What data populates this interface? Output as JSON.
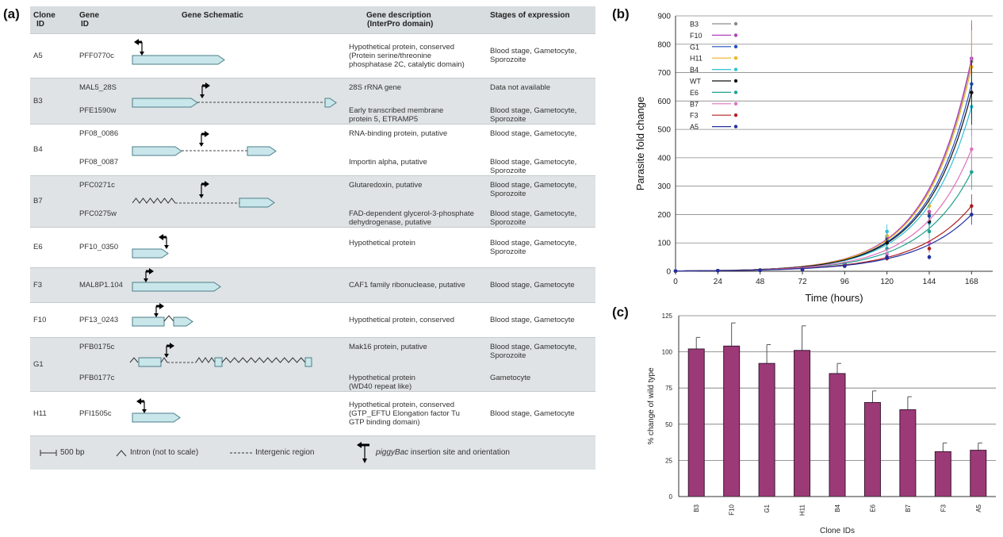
{
  "panels": {
    "a": "(a)",
    "b": "(b)",
    "c": "(c)"
  },
  "table": {
    "headers": {
      "clone": [
        "Clone",
        "ID"
      ],
      "gene": [
        "Gene",
        "ID"
      ],
      "schematic": "Gene Schematic",
      "description": [
        "Gene description",
        "(InterPro domain)"
      ],
      "stages": "Stages of expression"
    },
    "rows": [
      {
        "clone": "A5",
        "genes": [
          {
            "id": "PFF0770c",
            "desc": [
              "Hypothetical protein, conserved",
              "(Protein serine/threonine",
              "phosphatase 2C, catalytic domain)"
            ],
            "stage": [
              "Blood stage, Gametocyte,",
              "Sporozoite"
            ]
          }
        ]
      },
      {
        "clone": "B3",
        "genes": [
          {
            "id": "MAL5_28S",
            "desc": [
              "28S rRNA gene"
            ],
            "stage": [
              "Data not available"
            ]
          },
          {
            "id": "PFE1590w",
            "desc": [
              "Early transcribed membrane",
              "protein 5, ETRAMP5"
            ],
            "stage": [
              "Blood stage, Gametocyte,",
              "Sporozoite"
            ]
          }
        ]
      },
      {
        "clone": "B4",
        "genes": [
          {
            "id": "PF08_0086",
            "desc": [
              "RNA-binding protein, putative"
            ],
            "stage": [
              "Blood stage, Gametocyte,"
            ]
          },
          {
            "id": "PF08_0087",
            "desc": [
              "Importin alpha, putative"
            ],
            "stage": [
              "Blood stage, Gametocyte,",
              "Sporozoite"
            ]
          }
        ]
      },
      {
        "clone": "B7",
        "genes": [
          {
            "id": "PFC0271c",
            "desc": [
              "Glutaredoxin, putative"
            ],
            "stage": [
              "Blood stage, Gametocyte,",
              "Sporozoite"
            ]
          },
          {
            "id": "PFC0275w",
            "desc": [
              "FAD-dependent glycerol-3-phosphate",
              "dehydrogenase, putative"
            ],
            "stage": [
              "Blood stage, Gametocyte,",
              "Sporozoite"
            ]
          }
        ]
      },
      {
        "clone": "E6",
        "genes": [
          {
            "id": "PF10_0350",
            "desc": [
              "Hypothetical protein"
            ],
            "stage": [
              "Blood stage, Gametocyte,",
              "Sporozoite"
            ]
          }
        ]
      },
      {
        "clone": "F3",
        "genes": [
          {
            "id": "MAL8P1.104",
            "desc": [
              "CAF1 family ribonuclease, putative"
            ],
            "stage": [
              "Blood stage, Gametocyte"
            ]
          }
        ]
      },
      {
        "clone": "F10",
        "genes": [
          {
            "id": "PF13_0243",
            "desc": [
              "Hypothetical protein, conserved"
            ],
            "stage": [
              "Blood stage, Gametocyte"
            ]
          }
        ]
      },
      {
        "clone": "G1",
        "genes": [
          {
            "id": "PFB0175c",
            "desc": [
              "Mak16 protein, putative"
            ],
            "stage": [
              "Blood stage, Gametocyte,",
              "Sporozoite"
            ]
          },
          {
            "id": "PFB0177c",
            "desc": [
              "Hypothetical protein",
              "(WD40 repeat like)"
            ],
            "stage": [
              "Gametocyte"
            ]
          }
        ]
      },
      {
        "clone": "H11",
        "genes": [
          {
            "id": "PFI1505c",
            "desc": [
              "Hypothetical protein, conserved",
              "(GTP_EFTU Elongation factor Tu",
              "GTP binding domain)"
            ],
            "stage": [
              "Blood stage, Gametocyte"
            ]
          }
        ]
      }
    ],
    "legend": {
      "scale": "500 bp",
      "intron": "Intron (not to scale)",
      "intergenic": "Intergenic region",
      "insertion_italic": "piggyBac",
      "insertion_rest": " insertion site and orientation"
    },
    "colors": {
      "gene_fill": "#c9e6ea",
      "gene_stroke": "#4a7f89",
      "shade": "#dfe3e5"
    }
  },
  "chart_data": [
    {
      "type": "line",
      "panel": "b",
      "xlabel": "Time (hours)",
      "ylabel": "Parasite fold change",
      "x": [
        0,
        24,
        48,
        72,
        96,
        120,
        144,
        168
      ],
      "xlim": [
        0,
        180
      ],
      "ylim": [
        0,
        900
      ],
      "yticks": [
        0,
        100,
        200,
        300,
        400,
        500,
        600,
        700,
        800,
        900
      ],
      "grid": true,
      "legend_position": "top-left",
      "series": [
        {
          "name": "B3",
          "color": "#8a8a8a",
          "values": [
            1,
            2,
            4,
            9,
            28,
            115,
            200,
            740
          ]
        },
        {
          "name": "F10",
          "color": "#b040c0",
          "values": [
            1,
            2,
            4,
            9,
            28,
            120,
            210,
            750
          ]
        },
        {
          "name": "G1",
          "color": "#2050c0",
          "values": [
            1,
            2,
            4,
            9,
            27,
            110,
            195,
            660
          ]
        },
        {
          "name": "H11",
          "color": "#f0b020",
          "values": [
            1,
            2,
            4,
            9,
            28,
            125,
            230,
            720
          ]
        },
        {
          "name": "B4",
          "color": "#30c0d8",
          "values": [
            1,
            2,
            4,
            8,
            25,
            140,
            170,
            580
          ]
        },
        {
          "name": "WT",
          "color": "#111111",
          "values": [
            1,
            2,
            4,
            8,
            26,
            100,
            175,
            630
          ]
        },
        {
          "name": "E6",
          "color": "#20a090",
          "values": [
            1,
            2,
            4,
            7,
            22,
            80,
            140,
            350
          ]
        },
        {
          "name": "B7",
          "color": "#e070c0",
          "values": [
            1,
            2,
            3,
            6,
            20,
            60,
            100,
            430
          ]
        },
        {
          "name": "F3",
          "color": "#b02020",
          "values": [
            1,
            2,
            3,
            6,
            18,
            45,
            80,
            230
          ]
        },
        {
          "name": "A5",
          "color": "#2030a0",
          "values": [
            1,
            2,
            3,
            6,
            18,
            50,
            50,
            200
          ]
        }
      ]
    },
    {
      "type": "bar",
      "panel": "c",
      "xlabel": "Clone IDs",
      "ylabel": "% change of wild type",
      "categories": [
        "B3",
        "F10",
        "G1",
        "H11",
        "B4",
        "E6",
        "B7",
        "F3",
        "A5"
      ],
      "values": [
        102,
        104,
        92,
        101,
        85,
        65,
        60,
        31,
        32
      ],
      "errors": [
        8,
        16,
        13,
        17,
        7,
        8,
        9,
        6,
        5
      ],
      "ylim": [
        0,
        125
      ],
      "yticks": [
        0,
        25,
        50,
        75,
        100,
        125
      ],
      "grid": true,
      "bar_color": "#9c3a78"
    }
  ]
}
